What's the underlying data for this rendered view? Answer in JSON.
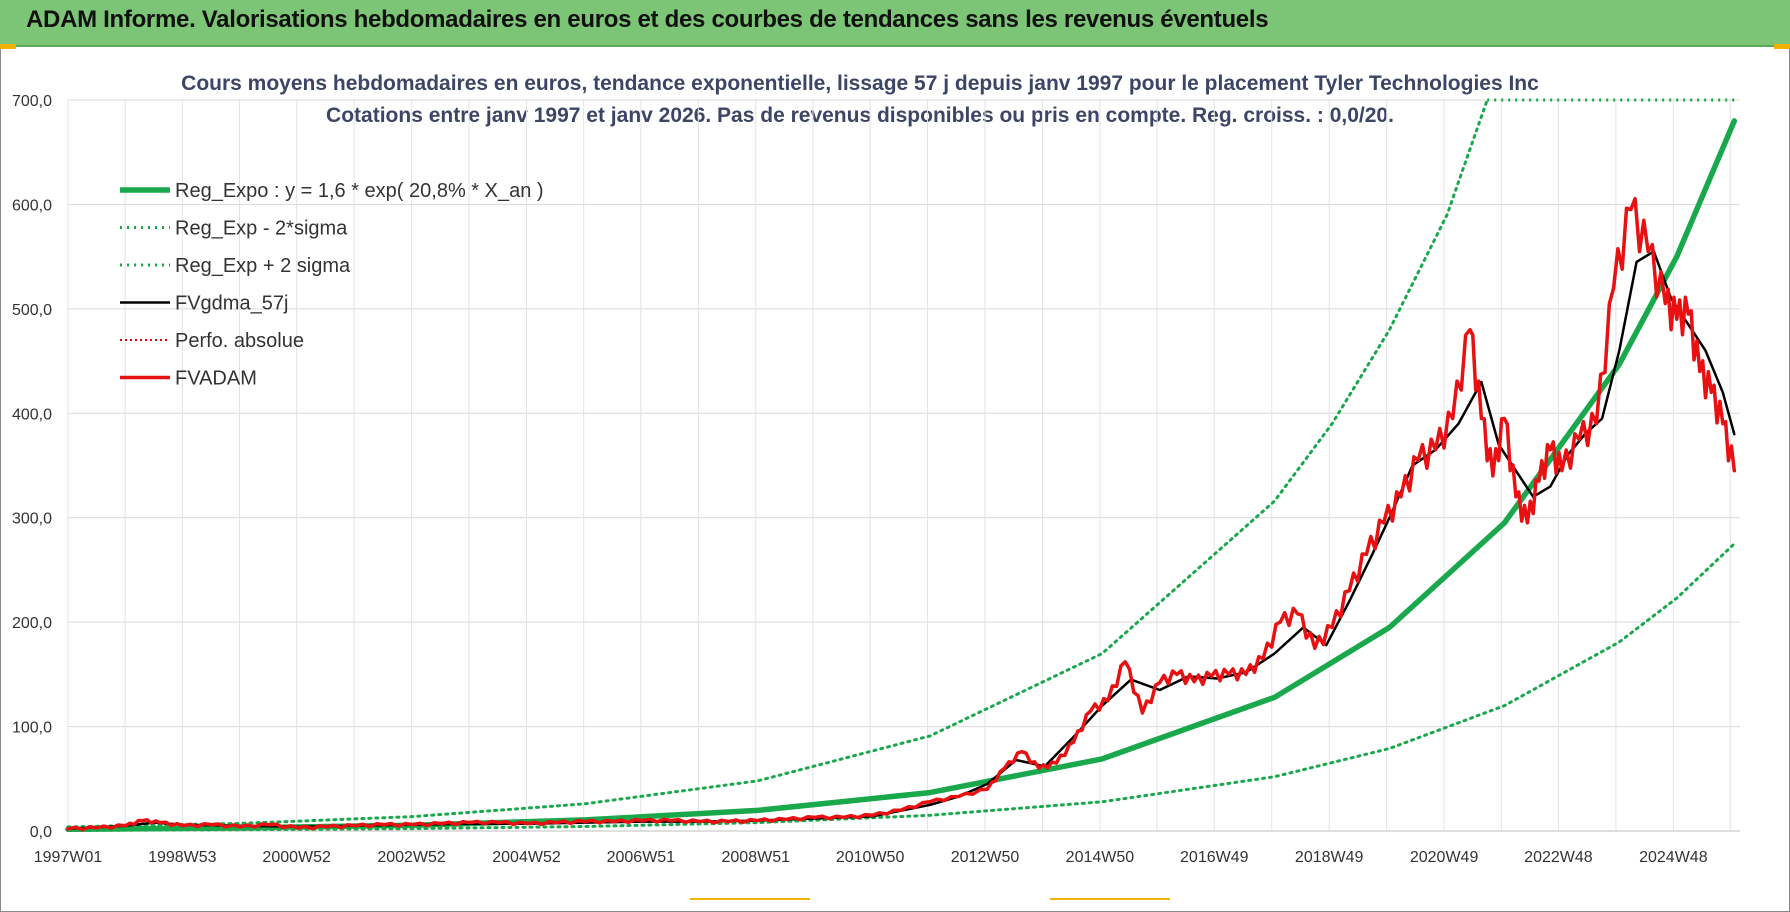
{
  "banner": {
    "title": "ADAM Informe. Valorisations hebdomadaires en euros et des courbes de tendances sans les revenus éventuels"
  },
  "colors": {
    "banner": "#7cc576",
    "trend": "#1aa84c",
    "smooth": "#000000",
    "absolute": "#e00000",
    "fvadam": "#e81010",
    "accent": "#f0b400"
  },
  "chart_data": {
    "type": "line",
    "title": "Cours moyens hebdomadaires en euros, tendance exponentielle, lissage 57 j depuis janv 1997  pour le placement Tyler  Technologies Inc",
    "subtitle": "Cotations entre janv 1997 et janv 2026. Pas de revenus disponibles ou pris en compte. Reg. croiss. : 0,0/20.",
    "xlabel": "",
    "ylabel": "",
    "ylim": [
      0,
      700
    ],
    "yticks": [
      "0,0",
      "100,0",
      "200,0",
      "300,0",
      "400,0",
      "500,0",
      "600,0",
      "700,0"
    ],
    "xlim": [
      1997.0,
      2026.1
    ],
    "xticks": [
      {
        "year": 1997.0,
        "label": "1997W01"
      },
      {
        "year": 1998.99,
        "label": "1998W53"
      },
      {
        "year": 2000.98,
        "label": "2000W52"
      },
      {
        "year": 2002.98,
        "label": "2002W52"
      },
      {
        "year": 2004.98,
        "label": "2004W52"
      },
      {
        "year": 2006.97,
        "label": "2006W51"
      },
      {
        "year": 2008.97,
        "label": "2008W51"
      },
      {
        "year": 2010.96,
        "label": "2010W50"
      },
      {
        "year": 2012.96,
        "label": "2012W50"
      },
      {
        "year": 2014.96,
        "label": "2014W50"
      },
      {
        "year": 2016.95,
        "label": "2016W49"
      },
      {
        "year": 2018.95,
        "label": "2018W49"
      },
      {
        "year": 2020.95,
        "label": "2020W49"
      },
      {
        "year": 2022.94,
        "label": "2022W48"
      },
      {
        "year": 2024.94,
        "label": "2024W48"
      }
    ],
    "legend_position": "top-left",
    "legend": [
      "Reg_Expo : y = 1,6 * exp( 20,8% *  X_an )",
      "Reg_Exp - 2*sigma",
      "Reg_Exp + 2 sigma",
      "FVgdma_57j",
      "Perfo. absolue",
      "FVADAM"
    ],
    "series": [
      {
        "name": "FVADAM",
        "x": [
          1997.0,
          1997.5,
          1998.0,
          1998.3,
          1998.6,
          1999.0,
          1999.5,
          2000.0,
          2000.5,
          2001.0,
          2001.5,
          2002.0,
          2002.5,
          2003.0,
          2003.5,
          2004.0,
          2004.5,
          2005.0,
          2005.5,
          2006.0,
          2006.5,
          2007.0,
          2007.5,
          2008.0,
          2008.5,
          2009.0,
          2009.5,
          2010.0,
          2010.5,
          2011.0,
          2011.5,
          2012.0,
          2012.5,
          2013.0,
          2013.3,
          2013.6,
          2013.9,
          2014.2,
          2014.5,
          2014.8,
          2015.1,
          2015.4,
          2015.7,
          2016.0,
          2016.3,
          2016.6,
          2016.9,
          2017.2,
          2017.5,
          2017.8,
          2018.1,
          2018.4,
          2018.7,
          2019.0,
          2019.3,
          2019.6,
          2019.9,
          2020.2,
          2020.5,
          2020.8,
          2021.1,
          2021.4,
          2021.6,
          2021.8,
          2022.0,
          2022.2,
          2022.4,
          2022.6,
          2022.8,
          2023.0,
          2023.3,
          2023.6,
          2023.9,
          2024.2,
          2024.5,
          2024.8,
          2025.0,
          2025.2,
          2025.4,
          2025.6,
          2025.8,
          2026.0
        ],
        "values": [
          2,
          3,
          5,
          10,
          8,
          5,
          6,
          4,
          6,
          3,
          4,
          5,
          6,
          6,
          7,
          8,
          8,
          7,
          8,
          9,
          9,
          10,
          10,
          9,
          9,
          10,
          11,
          13,
          13,
          15,
          20,
          28,
          33,
          40,
          60,
          76,
          60,
          65,
          85,
          115,
          125,
          162,
          113,
          142,
          150,
          143,
          148,
          150,
          150,
          165,
          200,
          208,
          175,
          195,
          230,
          265,
          295,
          320,
          355,
          365,
          395,
          480,
          395,
          340,
          395,
          320,
          295,
          335,
          365,
          345,
          375,
          390,
          520,
          595,
          555,
          505,
          490,
          495,
          440,
          420,
          390,
          345
        ]
      },
      {
        "name": "FVgdma_57j",
        "x": [
          1997.0,
          1998.0,
          1998.5,
          1999.0,
          2000.0,
          2001.0,
          2002.0,
          2003.0,
          2004.0,
          2005.0,
          2006.0,
          2007.0,
          2008.0,
          2009.0,
          2010.0,
          2011.0,
          2012.0,
          2012.5,
          2013.0,
          2013.5,
          2014.0,
          2014.5,
          2015.0,
          2015.5,
          2016.0,
          2016.5,
          2017.0,
          2017.5,
          2018.0,
          2018.5,
          2018.9,
          2019.3,
          2019.7,
          2020.0,
          2020.4,
          2020.8,
          2021.2,
          2021.6,
          2021.9,
          2022.2,
          2022.5,
          2022.8,
          2023.1,
          2023.4,
          2023.7,
          2024.0,
          2024.3,
          2024.6,
          2024.9,
          2025.2,
          2025.5,
          2025.8,
          2026.0
        ],
        "values": [
          2,
          5,
          8,
          6,
          5,
          4,
          5,
          6,
          7,
          7,
          8,
          9,
          9,
          10,
          12,
          14,
          25,
          33,
          45,
          68,
          62,
          90,
          120,
          145,
          135,
          148,
          146,
          152,
          170,
          195,
          178,
          220,
          265,
          300,
          350,
          365,
          390,
          430,
          370,
          345,
          320,
          330,
          360,
          380,
          395,
          460,
          545,
          555,
          510,
          485,
          460,
          420,
          380
        ]
      },
      {
        "name": "Reg_Expo",
        "formula": "y = 1,6 * exp( 20,8% * X_an )",
        "x": [
          1997.0,
          2000.0,
          2003.0,
          2006.0,
          2009.0,
          2012.0,
          2015.0,
          2018.0,
          2020.0,
          2022.0,
          2024.0,
          2025.0,
          2026.0
        ],
        "values": [
          1.6,
          3.0,
          5.6,
          10.6,
          19.7,
          36.8,
          69,
          128,
          195,
          295,
          447,
          550,
          680
        ]
      },
      {
        "name": "Reg_Exp - 2*sigma",
        "x": [
          1997.0,
          2000.0,
          2003.0,
          2006.0,
          2009.0,
          2012.0,
          2015.0,
          2018.0,
          2020.0,
          2022.0,
          2024.0,
          2025.0,
          2026.0
        ],
        "values": [
          0.6,
          1.2,
          2.3,
          4.3,
          8.0,
          15,
          28,
          52,
          79,
          120,
          181,
          223,
          275
        ]
      },
      {
        "name": "Reg_Exp + 2 sigma",
        "x": [
          1997.0,
          2000.0,
          2003.0,
          2006.0,
          2009.0,
          2012.0,
          2015.0,
          2018.0,
          2019.0,
          2020.0,
          2021.0,
          2021.7
        ],
        "values": [
          3.9,
          7.3,
          13.8,
          26,
          48,
          91,
          170,
          316,
          390,
          480,
          590,
          700
        ]
      },
      {
        "name": "Perfo. absolue",
        "x": [],
        "values": []
      }
    ]
  }
}
